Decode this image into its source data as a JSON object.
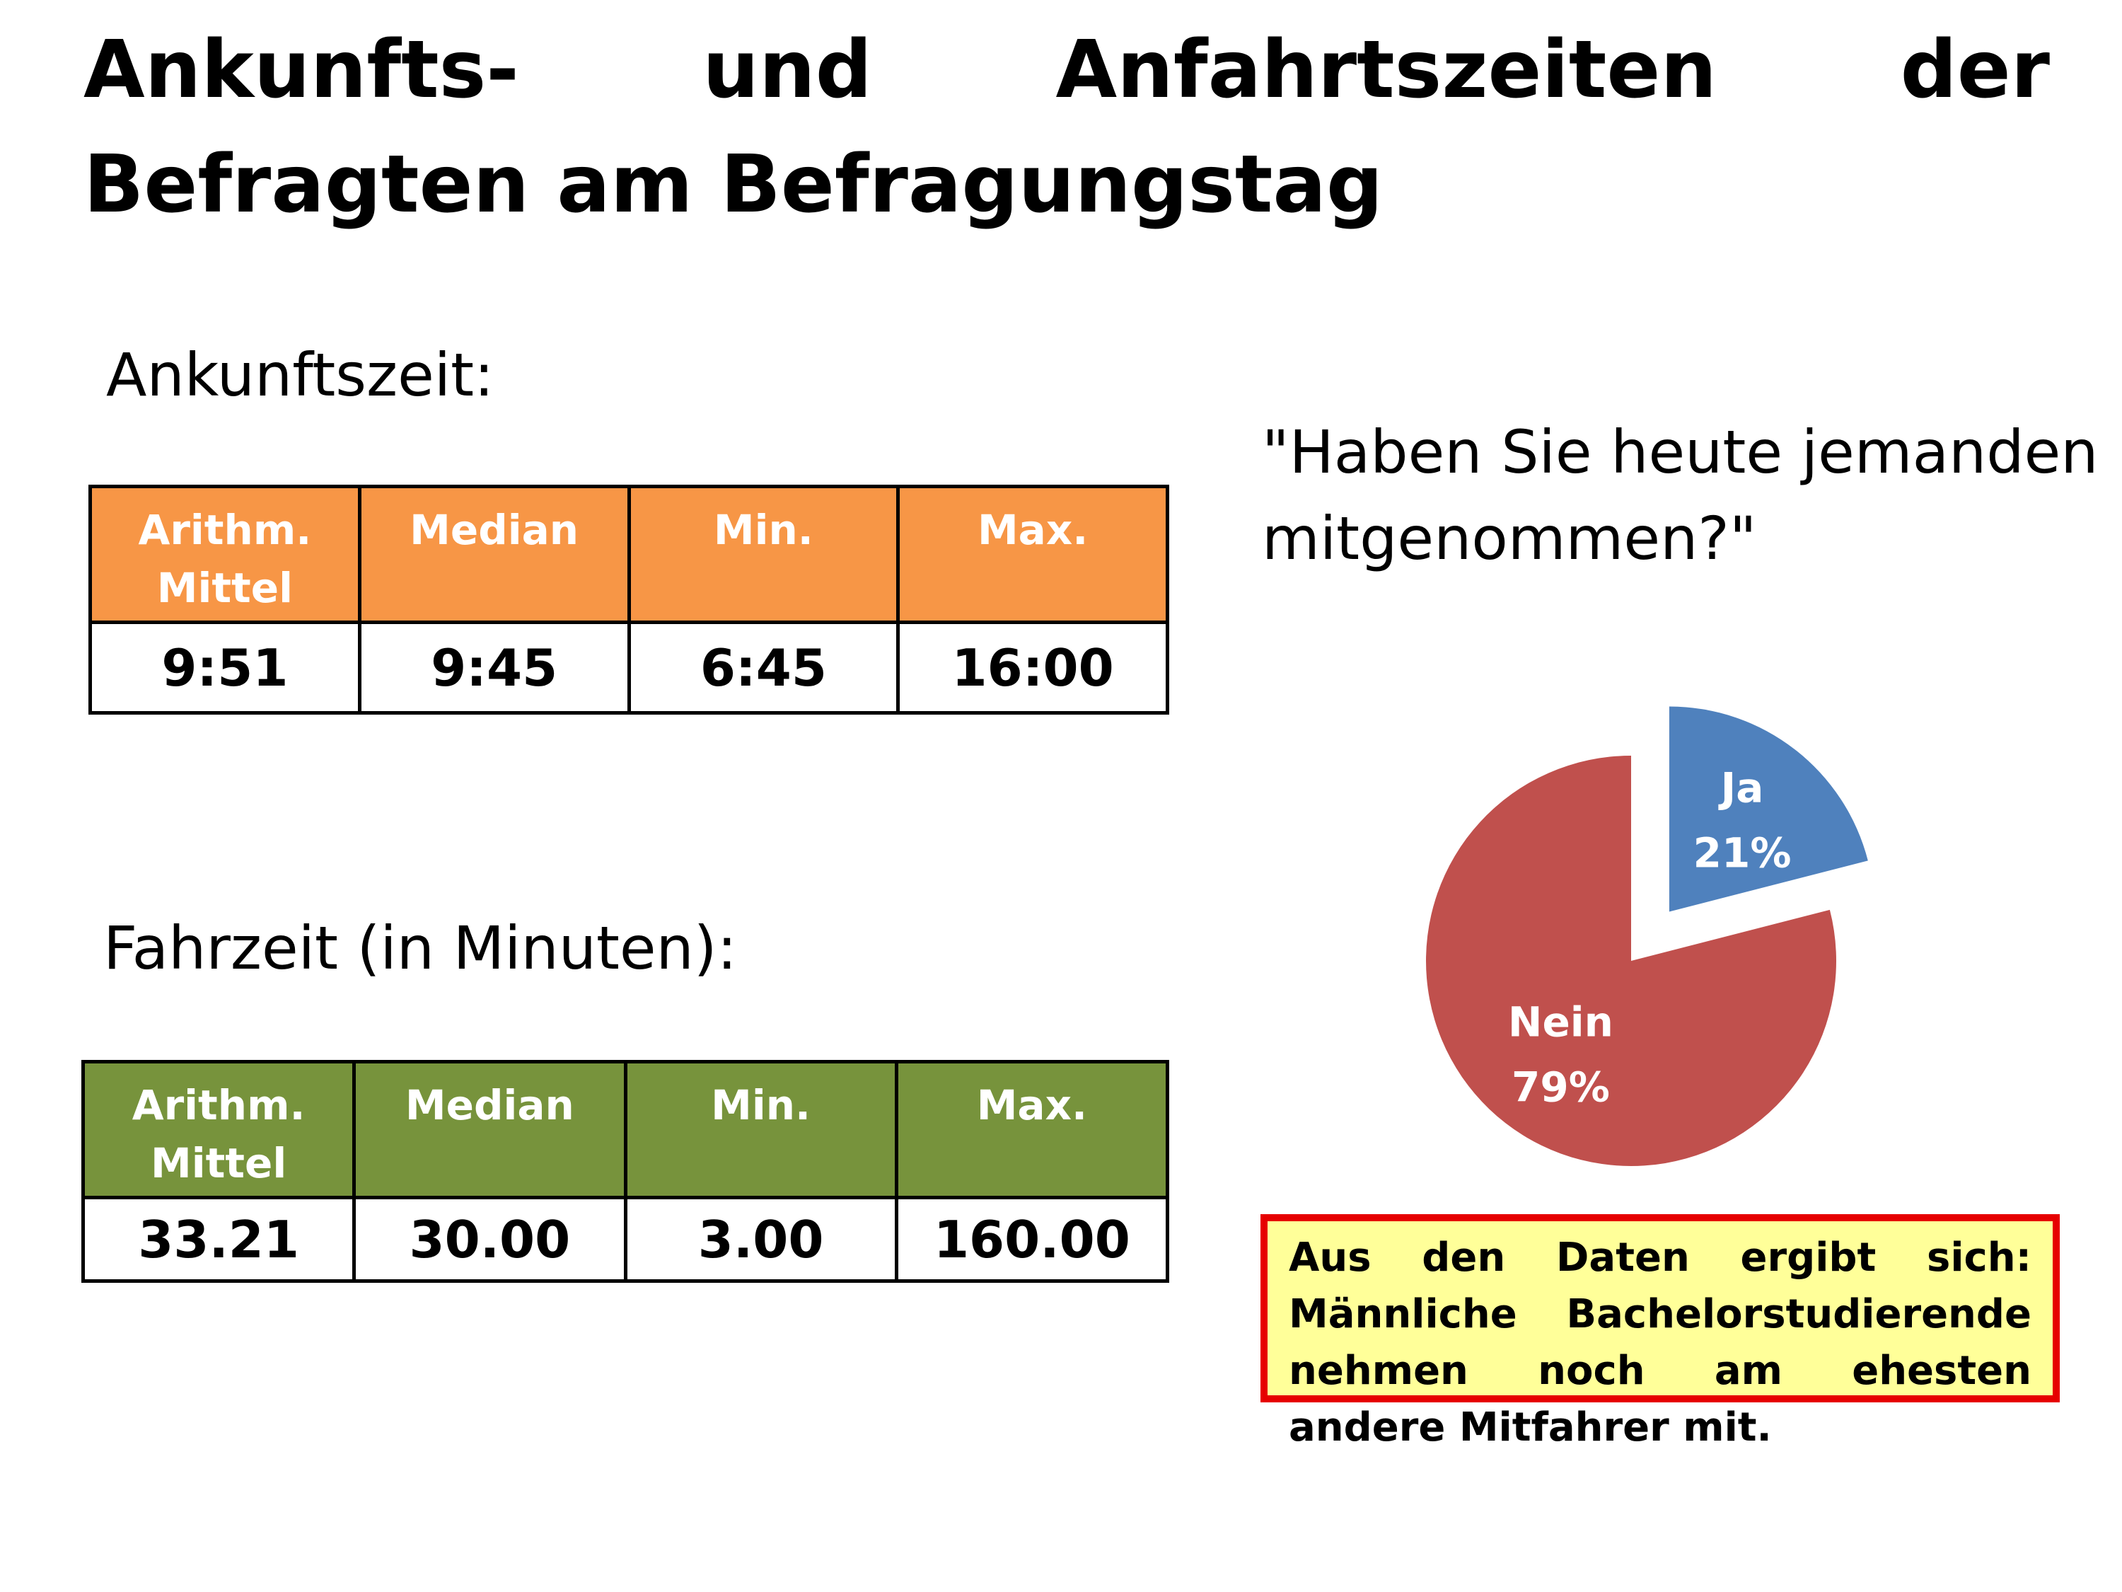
{
  "title": "Ankunfts- und Anfahrtszeiten der Befragten am Befragungstag",
  "arrival": {
    "label": "Ankunftszeit:",
    "header_color": "#f79646",
    "headers": [
      "Arithm. Mittel",
      "Median",
      "Min.",
      "Max."
    ],
    "values": [
      "9:51",
      "9:45",
      "6:45",
      "16:00"
    ]
  },
  "travel": {
    "label": "Fahrzeit (in Minuten):",
    "header_color": "#77933c",
    "headers": [
      "Arithm. Mittel",
      "Median",
      "Min.",
      "Max."
    ],
    "values": [
      "33.21",
      "30.00",
      "3.00",
      "160.00"
    ]
  },
  "question": "\"Haben Sie heute jemanden mitgenommen?\"",
  "chart_data": {
    "type": "pie",
    "title": "\"Haben Sie heute jemanden mitgenommen?\"",
    "categories": [
      "Ja",
      "Nein"
    ],
    "values": [
      21,
      79
    ],
    "labels": [
      "21%",
      "79%"
    ],
    "colors": [
      "#4f81bd",
      "#c0504d"
    ],
    "exploded": [
      "Ja"
    ],
    "legend": "none"
  },
  "note": "Aus den Daten ergibt sich: Männliche Bachelorstudierende nehmen noch am ehesten andere Mitfahrer mit."
}
